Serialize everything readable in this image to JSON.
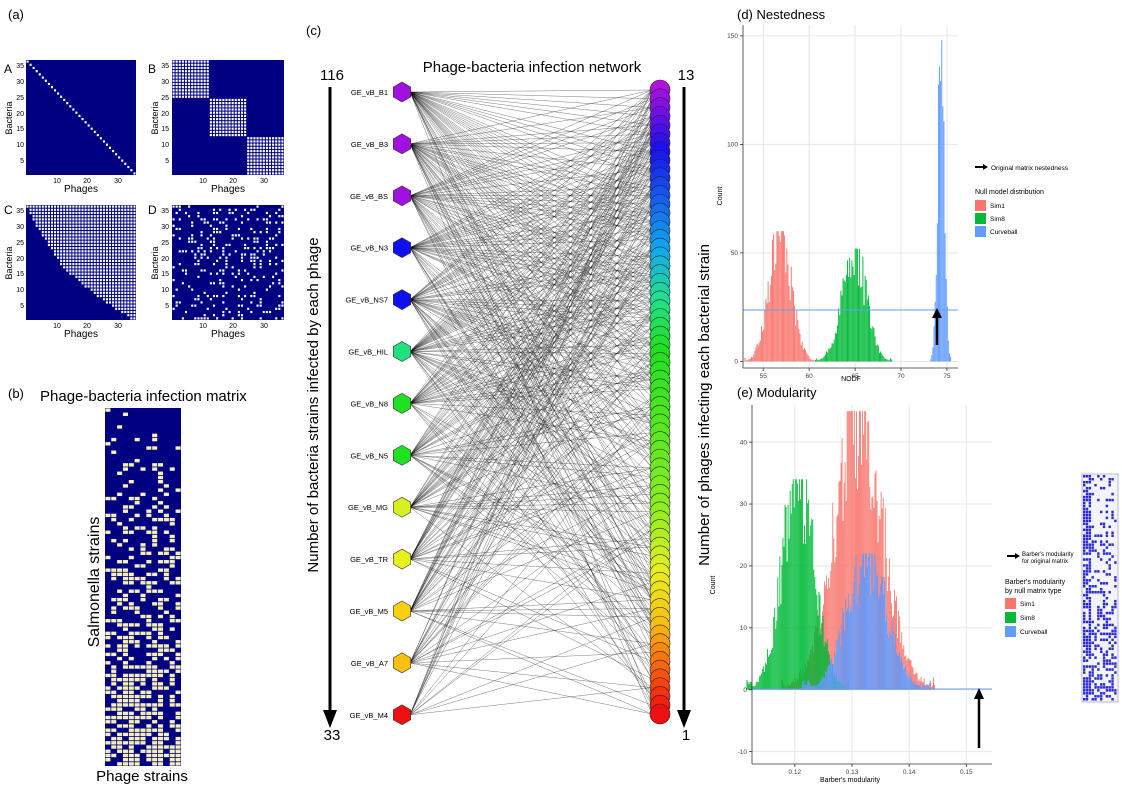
{
  "panels": {
    "a": {
      "tag": "(a)",
      "matrices": [
        {
          "letter": "A",
          "kind": "diagonal"
        },
        {
          "letter": "B",
          "kind": "modular"
        },
        {
          "letter": "C",
          "kind": "nested"
        },
        {
          "letter": "D",
          "kind": "random"
        }
      ],
      "xlabel": "Phages",
      "ylabel": "Bacteria",
      "xticks": [
        "10",
        "20",
        "30"
      ],
      "yticks": [
        "5",
        "10",
        "15",
        "20",
        "25",
        "30",
        "35"
      ]
    },
    "b": {
      "tag": "(b)",
      "title": "Phage-bacteria infection matrix",
      "ylabel": "Salmonella strains",
      "xlabel": "Phage strains"
    },
    "c": {
      "tag": "(c)",
      "title": "Phage-bacteria infection network",
      "left_axis_label": "Number of bacteria strains infected by each phage",
      "right_axis_label": "Number of phages infecting each bacterial strain",
      "left_top": "116",
      "left_bottom": "33",
      "right_top": "13",
      "right_bottom": "1",
      "phages": [
        {
          "name": "GE_vB_B1",
          "color": "#a010e0"
        },
        {
          "name": "GE_vB_B3",
          "color": "#a010e0"
        },
        {
          "name": "GE_vB_BS",
          "color": "#a010e0"
        },
        {
          "name": "GE_vB_N3",
          "color": "#1010ee"
        },
        {
          "name": "GE_vB_NS7",
          "color": "#1010ee"
        },
        {
          "name": "GE_vB_HIL",
          "color": "#20e080"
        },
        {
          "name": "GE_vB_N8",
          "color": "#20e020"
        },
        {
          "name": "GE_vB_N5",
          "color": "#20e020"
        },
        {
          "name": "GE_vB_MG",
          "color": "#d8f020"
        },
        {
          "name": "GE_vB_TR",
          "color": "#e8f020"
        },
        {
          "name": "GE_vB_M5",
          "color": "#f8d010"
        },
        {
          "name": "GE_vB_A7",
          "color": "#f8c010"
        },
        {
          "name": "GE_vB_M4",
          "color": "#ee1010"
        }
      ]
    },
    "d": {
      "tag": "(d) Nestedness",
      "xlabel": "NODF",
      "ylabel": "Count",
      "arrow_legend": "Original matrix nestedness",
      "legend_title": "Null model distribution"
    },
    "e": {
      "tag": "(e) Modularity",
      "xlabel": "Barber's modularity",
      "ylabel": "Count",
      "arrow_legend_1": "Barber's modularity",
      "arrow_legend_2": "for original matrix",
      "legend_title_1": "Barber's modularity",
      "legend_title_2": "by null matrix type"
    }
  },
  "legend_series": [
    {
      "name": "Sim1",
      "color": "#f8766d"
    },
    {
      "name": "Sim8",
      "color": "#00ba38"
    },
    {
      "name": "Curveball",
      "color": "#619cff"
    }
  ],
  "chart_data": [
    {
      "id": "nestedness",
      "type": "histogram",
      "title": "Nestedness",
      "xlabel": "NODF",
      "ylabel": "Count",
      "xlim": [
        52.8,
        76.2
      ],
      "ylim": [
        -3,
        155
      ],
      "xticks": [
        55,
        60,
        65,
        70,
        75
      ],
      "yticks": [
        0,
        50,
        100,
        150
      ],
      "series": [
        {
          "name": "Sim1",
          "color": "#f8766d",
          "mean": 56.8,
          "sd": 1.2,
          "peak": 60
        },
        {
          "name": "Sim8",
          "color": "#00ba38",
          "mean": 64.8,
          "sd": 1.3,
          "peak": 52
        },
        {
          "name": "Curveball",
          "color": "#619cff",
          "mean": 74.3,
          "sd": 0.35,
          "peak": 148
        }
      ],
      "observed_value": 73.9,
      "observed_label": "Original matrix nestedness"
    },
    {
      "id": "modularity",
      "type": "histogram",
      "title": "Modularity",
      "xlabel": "Barber's modularity",
      "ylabel": "Count",
      "xlim": [
        0.1125,
        0.1545
      ],
      "ylim": [
        -12,
        46
      ],
      "xticks": [
        0.12,
        0.13,
        0.14,
        0.15
      ],
      "yticks": [
        -10,
        0,
        10,
        20,
        30,
        40
      ],
      "series": [
        {
          "name": "Sim1",
          "color": "#f8766d",
          "mean": 0.131,
          "sd": 0.0042,
          "peak": 45
        },
        {
          "name": "Sim8",
          "color": "#00ba38",
          "mean": 0.1205,
          "sd": 0.0028,
          "peak": 34
        },
        {
          "name": "Curveball",
          "color": "#619cff",
          "mean": 0.1325,
          "sd": 0.0035,
          "peak": 22
        }
      ],
      "observed_value": 0.1517,
      "observed_label": "Barber's modularity for original matrix"
    }
  ]
}
